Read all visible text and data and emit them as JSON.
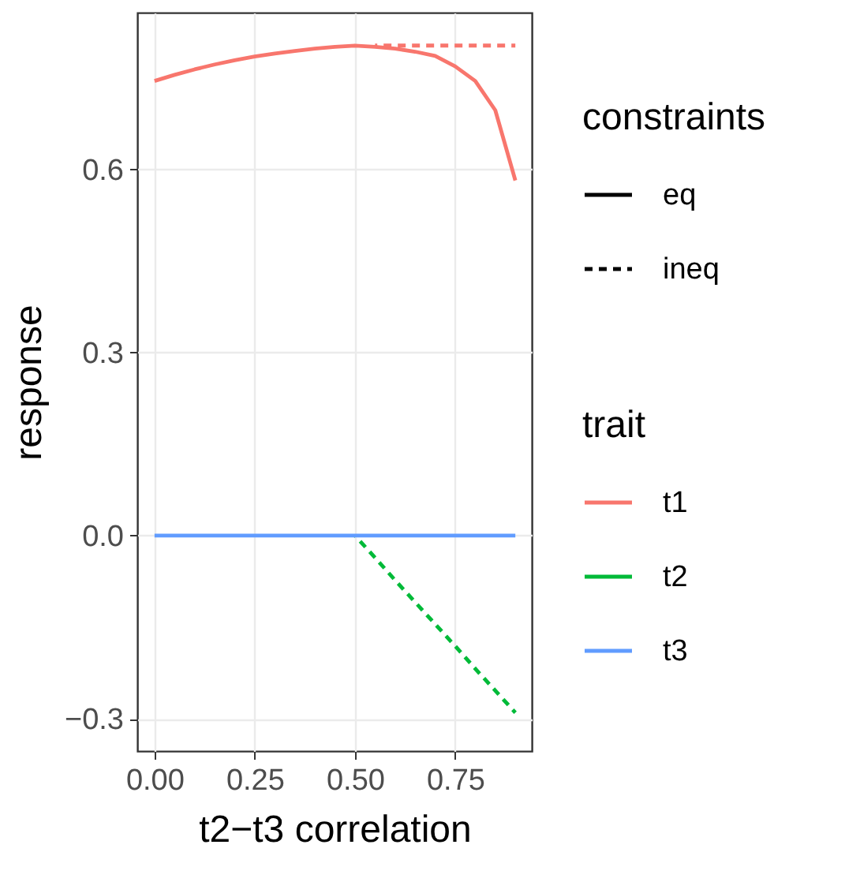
{
  "chart_data": {
    "type": "line",
    "xlabel": "t2−t3 correlation",
    "ylabel": "response",
    "legend_title": "trait",
    "annotations": [
      "constraints",
      "eq",
      "ineq"
    ],
    "x": [
      0,
      0.05,
      0.1,
      0.15,
      0.2,
      0.25,
      0.3,
      0.35,
      0.4,
      0.45,
      0.5,
      0.55,
      0.6,
      0.65,
      0.7,
      0.75,
      0.8,
      0.85,
      0.9
    ],
    "series": [
      {
        "name": "t1",
        "color": "#f8766d",
        "line_style": "solid",
        "values": [
          0.745,
          0.755,
          0.764,
          0.772,
          0.779,
          0.785,
          0.79,
          0.794,
          0.798,
          0.801,
          0.803,
          0.801,
          0.798,
          0.793,
          0.786,
          0.769,
          0.745,
          0.697,
          0.582
        ]
      },
      {
        "name": "t2",
        "color": "#00ba38",
        "line_style": "dashed",
        "x": [
          0.5,
          0.55,
          0.6,
          0.65,
          0.7,
          0.75,
          0.8,
          0.85,
          0.9
        ],
        "values": [
          0,
          -0.036,
          -0.073,
          -0.109,
          -0.145,
          -0.181,
          -0.218,
          -0.254,
          -0.29
        ]
      },
      {
        "name": "t3",
        "color": "#619cff",
        "line_style": "solid",
        "values": [
          0,
          0,
          0,
          0,
          0,
          0,
          0,
          0,
          0,
          0,
          0,
          0,
          0,
          0,
          0,
          0,
          0,
          0,
          0
        ]
      },
      {
        "color": "#f8766d",
        "line_style": "dashed",
        "x": [
          0.55,
          0.6,
          0.65,
          0.7,
          0.75,
          0.8,
          0.85,
          0.9
        ],
        "values": [
          0.803,
          0.803,
          0.803,
          0.803,
          0.803,
          0.803,
          0.803,
          0.803
        ]
      }
    ],
    "xlim": [
      -0.043,
      0.941
    ],
    "xticks": [
      {
        "value": 0,
        "label": "0.00"
      },
      {
        "value": 0.25,
        "label": "0.25"
      },
      {
        "value": 0.5,
        "label": "0.50"
      },
      {
        "value": 0.75,
        "label": "0.75"
      }
    ],
    "ylim": [
      -0.353,
      0.857
    ],
    "yticks": [
      {
        "value": -0.3,
        "label": "−0.3"
      },
      {
        "value": 0,
        "label": "0.0"
      },
      {
        "value": 0.3,
        "label": "0.3"
      },
      {
        "value": 0.6,
        "label": "0.6"
      }
    ],
    "grid": true,
    "legend": "right"
  }
}
